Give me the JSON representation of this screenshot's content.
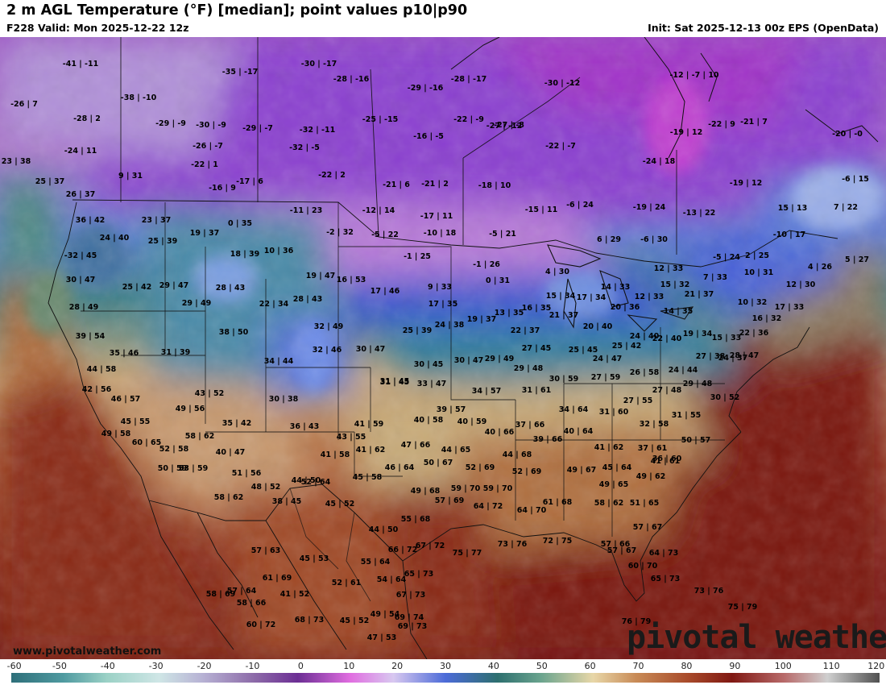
{
  "header": {
    "title": "2 m AGL Temperature (°F) [median]; point values p10|p90",
    "subtitle": "F228 Valid: Mon 2025-12-22 12z",
    "init": "Init: Sat 2025-12-13 00z EPS (OpenData)"
  },
  "colors": {
    "background_ocean": "#7a1a12",
    "deep_purple": "#8a3fc8",
    "blue": "#3b5bd6",
    "teal": "#4a8a86",
    "tan": "#d9b48a",
    "brown": "#9a4a2a"
  },
  "point_values": [
    "-41|-11",
    "-35|-17",
    "-30|-17",
    "-28|-16",
    "-28|-17",
    "-30|-12",
    "-38|-10",
    "-26|7",
    "-28|2",
    "-27|-12",
    "-29|-16",
    "-29|-9",
    "-30|-9",
    "-29|-7",
    "-32|-11",
    "-25|-15",
    "-16|-5",
    "-27|-8",
    "-22|-9",
    "-22|-7",
    "-24|11",
    "-26|-7",
    "-32|-5",
    "-22|1",
    "-22|2",
    "-21|6",
    "-21|2",
    "-18|10",
    "-24|18",
    "-19|12",
    "-22|9",
    "-21|7",
    "-20|-0",
    "-12|-7|10",
    "23|38",
    "9|31",
    "-17|6",
    "-16|9",
    "25|37",
    "26|37",
    "-19|12",
    "-6|15",
    "36|42",
    "23|37",
    "19|37",
    "0|35",
    "-11|23",
    "-12|14",
    "-17|11",
    "-15|11",
    "-6|24",
    "-19|24",
    "-13|22",
    "15|13",
    "7|22",
    "24|40",
    "25|39",
    "-2|32",
    "-5|22",
    "-10|18",
    "-5|21",
    "6|29",
    "-6|30",
    "-10|17",
    "-32|45",
    "18|39",
    "10|36",
    "-1|25",
    "-1|26",
    "-5|24",
    "2|25",
    "4|26",
    "5|27",
    "30|47",
    "19|47",
    "16|53",
    "4|30",
    "12|33",
    "10|31",
    "12|30",
    "25|42",
    "29|47",
    "28|43",
    "17|46",
    "9|33",
    "0|31",
    "14|33",
    "15|32",
    "7|33",
    "28|49",
    "29|49",
    "22|34",
    "28|43",
    "17|35",
    "15|34",
    "17|34",
    "12|33",
    "21|37",
    "10|32",
    "17|33",
    "39|54",
    "38|50",
    "32|49",
    "24|38",
    "19|37",
    "13|35",
    "16|35",
    "21|37",
    "20|36",
    "14|35",
    "16|32",
    "35|46",
    "31|39",
    "34|44",
    "32|46",
    "30|47",
    "25|39",
    "22|37",
    "20|40",
    "24|40",
    "19|34",
    "15|33",
    "22|36",
    "44|58",
    "31|45",
    "30|45",
    "30|47",
    "27|45",
    "25|45",
    "25|42",
    "22|40",
    "27|38",
    "28|47",
    "42|56",
    "46|57",
    "43|52",
    "30|38",
    "31|45",
    "33|47",
    "29|49",
    "29|48",
    "24|47",
    "27|59",
    "26|58",
    "24|44",
    "24|37",
    "49|56",
    "34|57",
    "31|61",
    "30|59",
    "27|48",
    "29|48",
    "30|52",
    "45|55",
    "35|42",
    "36|43",
    "41|59",
    "39|57",
    "40|58",
    "40|59",
    "37|66",
    "34|64",
    "31|60",
    "27|55",
    "31|55",
    "49|58",
    "58|62",
    "43|55",
    "40|66",
    "39|66",
    "40|64",
    "32|58",
    "50|57",
    "60|65",
    "52|58",
    "40|47",
    "41|58",
    "41|62",
    "47|66",
    "44|65",
    "41|62",
    "37|61",
    "36|60",
    "50|59",
    "53|59",
    "51|56",
    "45|58",
    "46|64",
    "50|67",
    "44|68",
    "52|69",
    "49|67",
    "45|64",
    "41|61",
    "48|52",
    "44|50",
    "52|69",
    "49|62",
    "58|62",
    "38|45",
    "45|52",
    "49|68",
    "59|70",
    "59|70",
    "49|65",
    "58|62",
    "51|65",
    "52|64",
    "44|50",
    "55|68",
    "57|69",
    "64|72",
    "64|70",
    "61|68",
    "57|67",
    "57|66",
    "57|63",
    "45|53",
    "55|64",
    "66|72",
    "67|72",
    "75|77",
    "73|76",
    "72|75",
    "57|67",
    "64|73",
    "61|69",
    "52|61",
    "54|64",
    "65|73",
    "65|73",
    "60|70",
    "57|64",
    "58|69",
    "58|66",
    "41|52",
    "67|73",
    "73|76",
    "60|72",
    "69|74",
    "68|73",
    "45|52",
    "49|54",
    "69|73",
    "75|79",
    "76|79",
    "47|53"
  ],
  "watermark": "pivotal weather",
  "site": "www.pivotalweather.com",
  "colorbar": {
    "ticks": [
      "-60",
      "-50",
      "-40",
      "-30",
      "-20",
      "-10",
      "0",
      "10",
      "20",
      "30",
      "40",
      "50",
      "60",
      "70",
      "80",
      "90",
      "100",
      "110",
      "120"
    ],
    "min": -60,
    "max": 120
  }
}
